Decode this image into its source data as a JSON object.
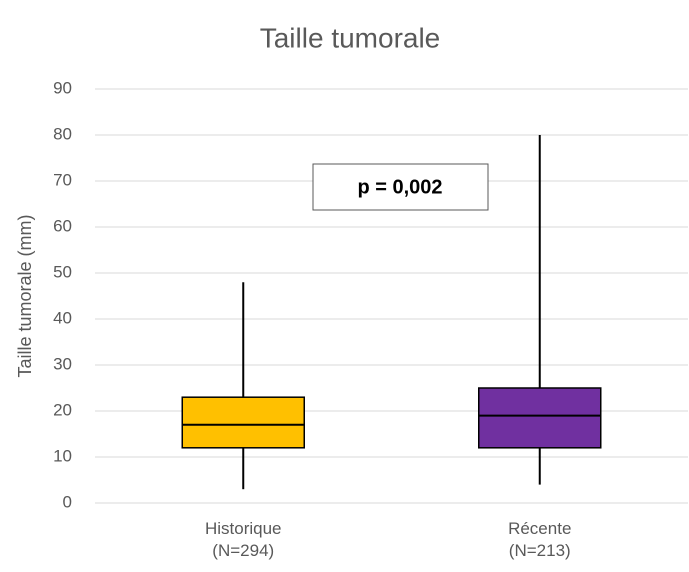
{
  "chart_data": {
    "type": "box",
    "title": "Taille tumorale",
    "ylabel": "Taille tumorale (mm)",
    "categories": [
      "Historique\n(N=294)",
      "Récente\n(N=213)"
    ],
    "boxes": [
      {
        "whislo": 3,
        "q1": 12,
        "med": 17,
        "q3": 23,
        "whishi": 48,
        "color": "#ffc000"
      },
      {
        "whislo": 4,
        "q1": 12,
        "med": 19,
        "q3": 25,
        "whishi": 80,
        "color": "#7030a0"
      }
    ],
    "annotation": "p = 0,002",
    "ylim": [
      0,
      90
    ],
    "yticks": [
      0,
      10,
      20,
      30,
      40,
      50,
      60,
      70,
      80,
      90
    ],
    "grid": true
  }
}
